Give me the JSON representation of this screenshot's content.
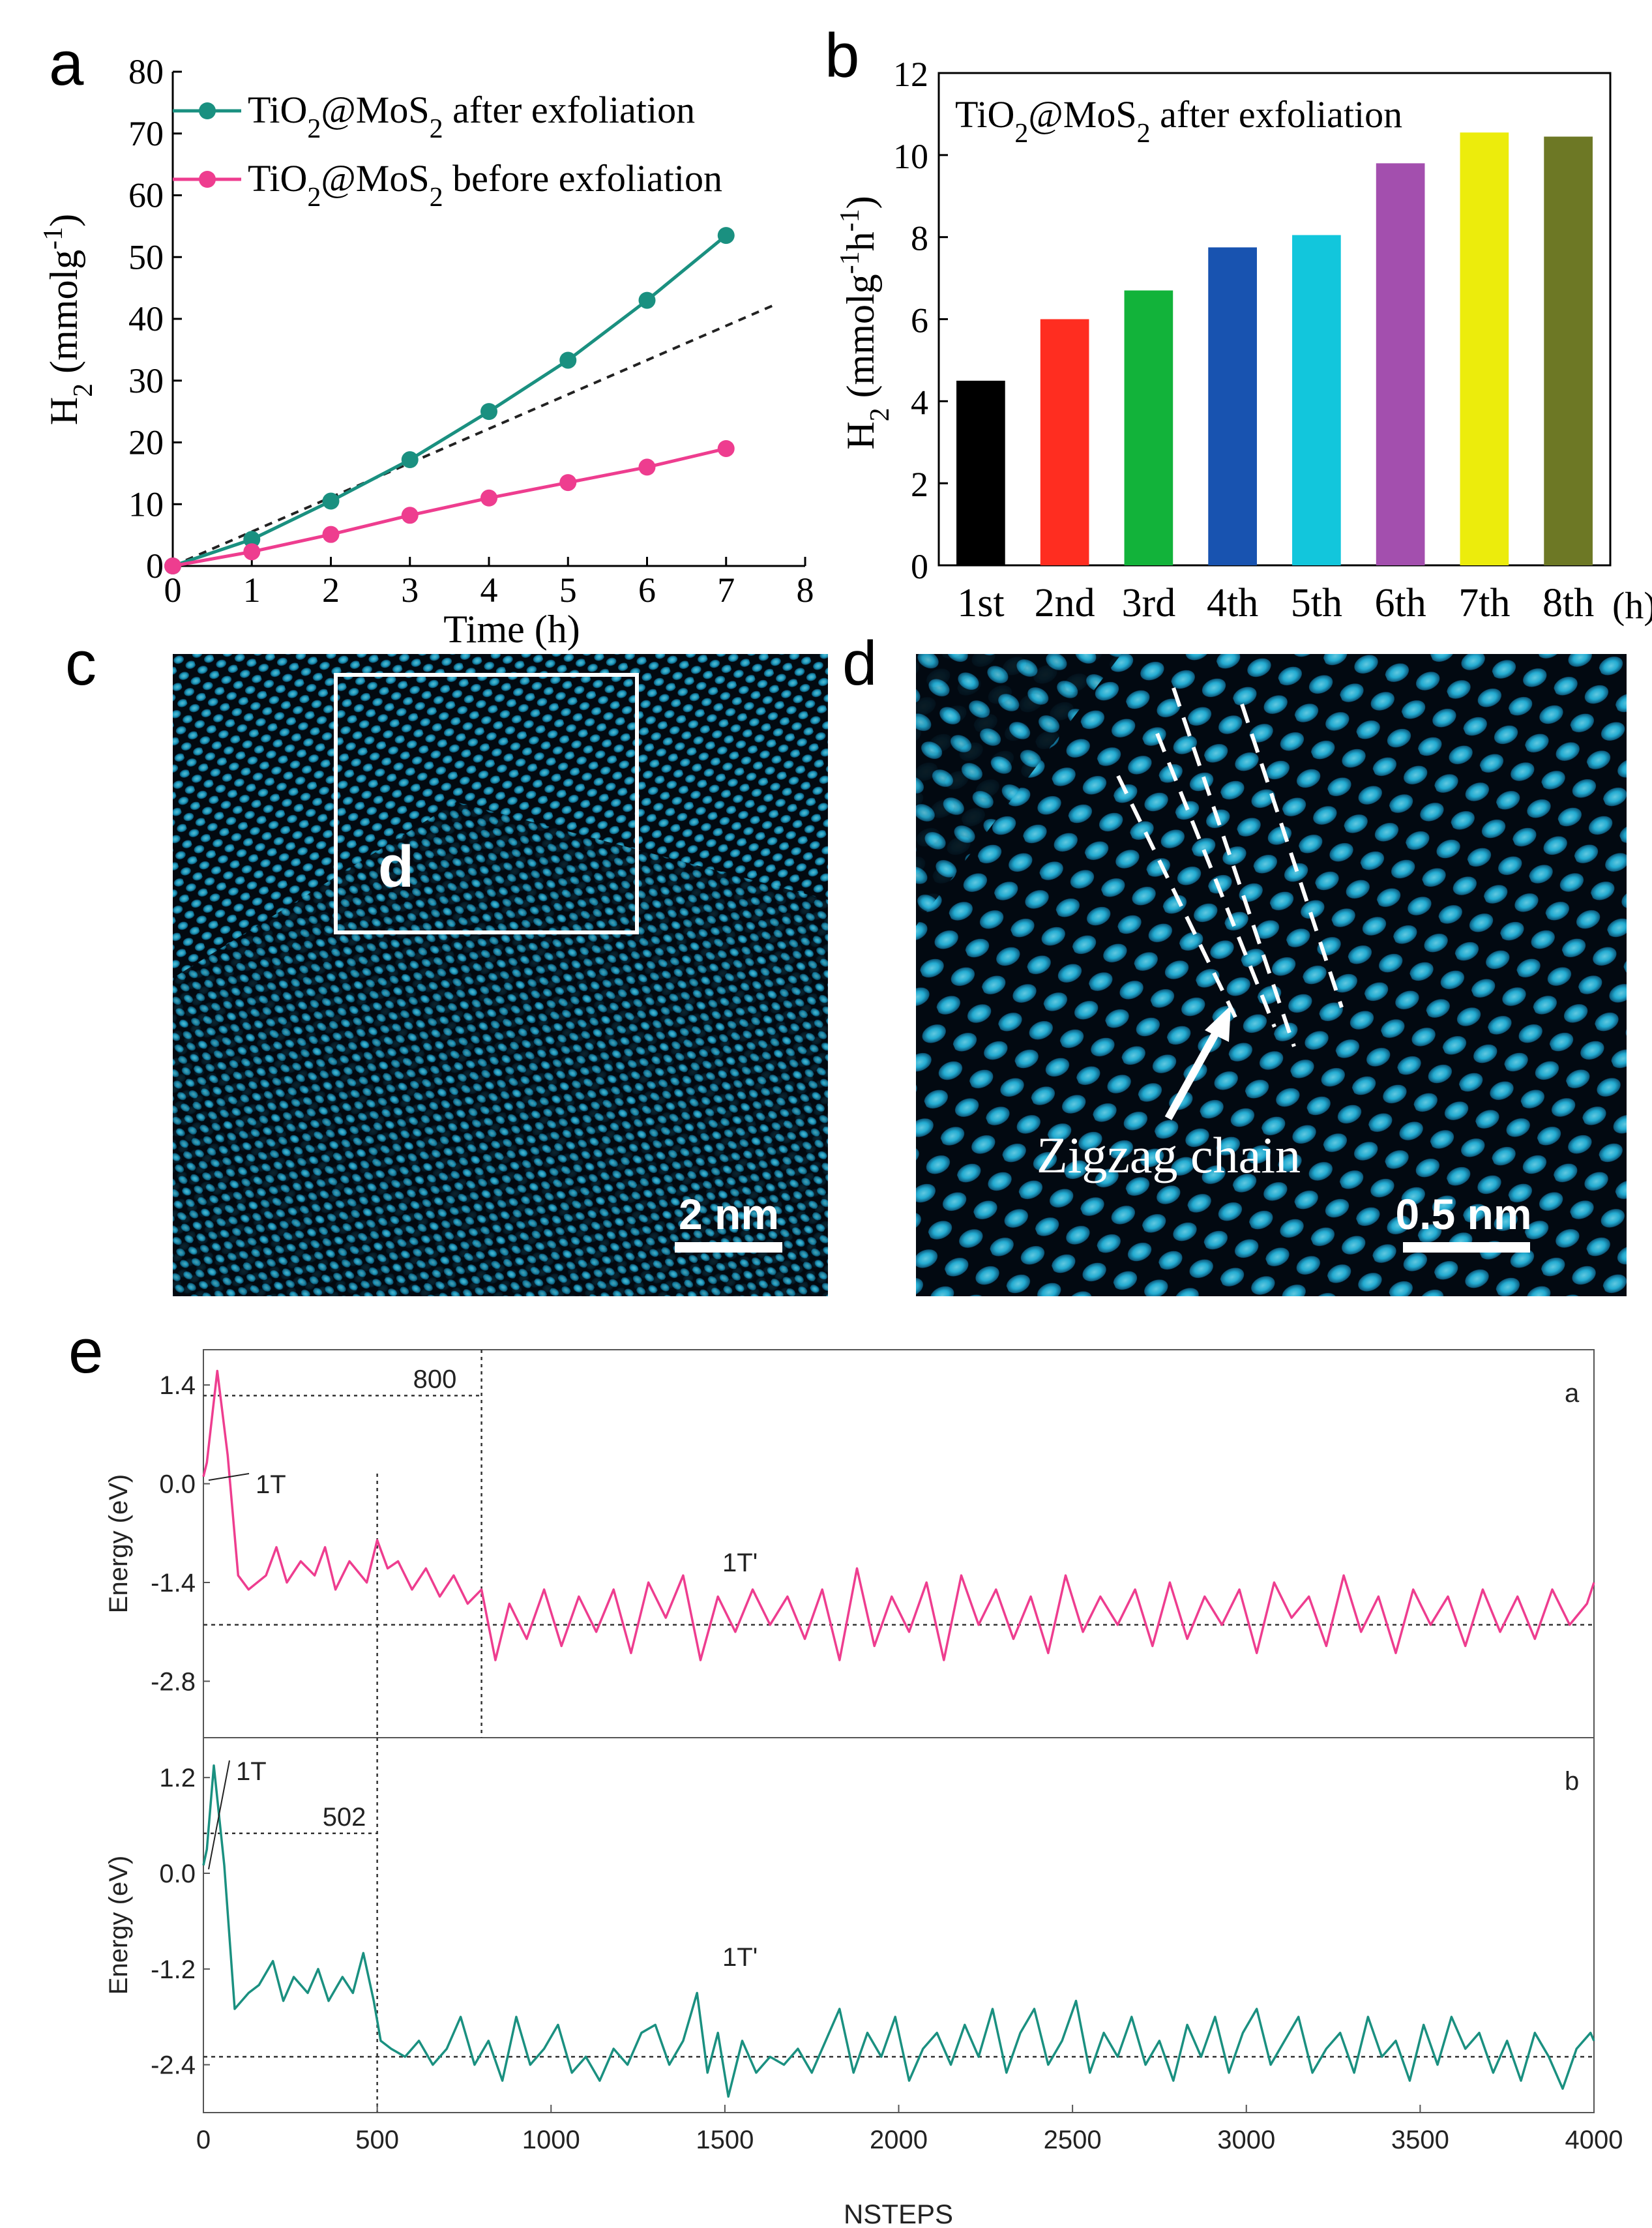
{
  "panels": {
    "a": "a",
    "b": "b",
    "c": "c",
    "d": "d",
    "e": "e"
  },
  "colors": {
    "teal": "#1a9080",
    "pink": "#ee3d8f",
    "hrtem_bg": "#020a12",
    "hrtem_atom": "#29c4ef"
  },
  "chart_data": [
    {
      "id": "a",
      "type": "line",
      "xlabel": "Time (h)",
      "ylabel": "H2 (mmolg-1)",
      "xlim": [
        0,
        8
      ],
      "ylim": [
        0,
        80
      ],
      "xticks": [
        "0",
        "1",
        "2",
        "3",
        "4",
        "5",
        "6",
        "7",
        "8"
      ],
      "yticks": [
        "0",
        "10",
        "20",
        "30",
        "40",
        "50",
        "60",
        "70",
        "80"
      ],
      "legend_position": "top-left",
      "series": [
        {
          "name": "TiO2@MoS2 after exfoliation",
          "color": "#1a9080",
          "x": [
            0,
            1,
            2,
            3,
            4,
            5,
            6,
            7
          ],
          "y": [
            0,
            4.3,
            10.5,
            17.2,
            25.0,
            33.3,
            43.0,
            53.5
          ]
        },
        {
          "name": "TiO2@MoS2 before exfoliation",
          "color": "#ee3d8f",
          "x": [
            0,
            1,
            2,
            3,
            4,
            5,
            6,
            7
          ],
          "y": [
            0,
            2.3,
            5.1,
            8.2,
            11.0,
            13.5,
            16.0,
            19.0
          ]
        }
      ],
      "reference_line": {
        "style": "dashed",
        "x": [
          0,
          7.6
        ],
        "y": [
          0,
          42.2
        ]
      }
    },
    {
      "id": "b",
      "type": "bar",
      "title": "TiO2@MoS2 after exfoliation",
      "ylabel": "H2 (mmolg-1h-1)",
      "xunit": "(h)",
      "ylim": [
        0,
        12
      ],
      "yticks": [
        "0",
        "2",
        "4",
        "6",
        "8",
        "10",
        "12"
      ],
      "categories": [
        "1st",
        "2nd",
        "3rd",
        "4th",
        "5th",
        "6th",
        "7th",
        "8th"
      ],
      "values": [
        4.5,
        6.0,
        6.7,
        7.75,
        8.05,
        9.8,
        10.55,
        10.45
      ],
      "bar_colors": [
        "#000000",
        "#ff2d20",
        "#12b33a",
        "#1853b0",
        "#12c6dc",
        "#a34fae",
        "#ecec0c",
        "#6d7825"
      ]
    },
    {
      "id": "e-a",
      "type": "line",
      "corner_label": "a",
      "xlim": [
        0,
        4000
      ],
      "ylim": [
        -3.6,
        1.9
      ],
      "ylabel": "Energy (eV)",
      "yticks": [
        "1.4",
        "0.0",
        "-1.4",
        "-2.8"
      ],
      "ytick_values": [
        1.4,
        0.0,
        -1.4,
        -2.8
      ],
      "annotations": {
        "step_label": "800",
        "start_phase": "1T",
        "end_phase": "1T'"
      },
      "step_value": 800,
      "peak_energy": 1.25,
      "guide_x": 500,
      "baseline": -2.0,
      "color": "#ee3d8f",
      "series": {
        "x": [
          0,
          10,
          40,
          70,
          100,
          130,
          180,
          210,
          240,
          280,
          320,
          350,
          380,
          420,
          470,
          500,
          530,
          560,
          600,
          640,
          680,
          720,
          760,
          800,
          840,
          880,
          930,
          980,
          1030,
          1080,
          1130,
          1180,
          1230,
          1280,
          1330,
          1380,
          1430,
          1480,
          1530,
          1580,
          1630,
          1680,
          1730,
          1780,
          1830,
          1880,
          1930,
          1980,
          2030,
          2080,
          2130,
          2180,
          2230,
          2280,
          2330,
          2380,
          2430,
          2480,
          2530,
          2580,
          2630,
          2680,
          2730,
          2780,
          2830,
          2880,
          2930,
          2980,
          3030,
          3080,
          3130,
          3180,
          3230,
          3280,
          3330,
          3380,
          3430,
          3480,
          3530,
          3580,
          3630,
          3680,
          3730,
          3780,
          3830,
          3880,
          3930,
          3980,
          4000
        ],
        "y": [
          0.1,
          0.3,
          1.6,
          0.4,
          -1.3,
          -1.5,
          -1.3,
          -0.9,
          -1.4,
          -1.1,
          -1.3,
          -0.9,
          -1.5,
          -1.1,
          -1.4,
          -0.8,
          -1.2,
          -1.1,
          -1.5,
          -1.2,
          -1.6,
          -1.3,
          -1.7,
          -1.5,
          -2.5,
          -1.7,
          -2.2,
          -1.5,
          -2.3,
          -1.6,
          -2.1,
          -1.5,
          -2.4,
          -1.4,
          -1.9,
          -1.3,
          -2.5,
          -1.6,
          -2.1,
          -1.5,
          -2.0,
          -1.6,
          -2.2,
          -1.5,
          -2.5,
          -1.2,
          -2.3,
          -1.6,
          -2.1,
          -1.4,
          -2.5,
          -1.3,
          -2.0,
          -1.5,
          -2.2,
          -1.6,
          -2.4,
          -1.3,
          -2.1,
          -1.6,
          -2.0,
          -1.5,
          -2.3,
          -1.4,
          -2.2,
          -1.6,
          -2.0,
          -1.5,
          -2.4,
          -1.4,
          -1.9,
          -1.6,
          -2.3,
          -1.3,
          -2.1,
          -1.6,
          -2.4,
          -1.5,
          -2.0,
          -1.6,
          -2.3,
          -1.5,
          -2.1,
          -1.6,
          -2.2,
          -1.5,
          -2.0,
          -1.7,
          -1.4
        ]
      }
    },
    {
      "id": "e-b",
      "type": "line",
      "corner_label": "b",
      "xlim": [
        0,
        4000
      ],
      "ylim": [
        -3.0,
        1.7
      ],
      "xlabel": "NSTEPS",
      "ylabel": "Energy (eV)",
      "xticks": [
        "0",
        "500",
        "1000",
        "1500",
        "2000",
        "2500",
        "3000",
        "3500",
        "4000"
      ],
      "yticks": [
        "1.2",
        "0.0",
        "-1.2",
        "-2.4"
      ],
      "ytick_values": [
        1.2,
        0.0,
        -1.2,
        -2.4
      ],
      "annotations": {
        "step_label": "502",
        "start_phase": "1T",
        "end_phase": "1T'"
      },
      "step_value": 502,
      "peak_energy": 0.5,
      "guide_x": 500,
      "baseline": -2.3,
      "color": "#1a9080",
      "series": {
        "x": [
          0,
          10,
          30,
          60,
          90,
          130,
          160,
          200,
          230,
          260,
          300,
          330,
          360,
          400,
          430,
          460,
          490,
          510,
          540,
          580,
          620,
          660,
          700,
          740,
          780,
          820,
          860,
          900,
          940,
          980,
          1020,
          1060,
          1100,
          1140,
          1180,
          1220,
          1260,
          1300,
          1340,
          1380,
          1420,
          1450,
          1480,
          1510,
          1550,
          1590,
          1630,
          1670,
          1710,
          1750,
          1790,
          1830,
          1870,
          1910,
          1950,
          1990,
          2030,
          2070,
          2110,
          2150,
          2190,
          2230,
          2270,
          2310,
          2350,
          2390,
          2430,
          2470,
          2510,
          2550,
          2590,
          2630,
          2670,
          2710,
          2750,
          2790,
          2830,
          2870,
          2910,
          2950,
          2990,
          3030,
          3070,
          3110,
          3150,
          3190,
          3230,
          3270,
          3310,
          3350,
          3390,
          3430,
          3470,
          3510,
          3550,
          3590,
          3630,
          3670,
          3710,
          3750,
          3790,
          3830,
          3870,
          3910,
          3950,
          3990,
          4000
        ],
        "y": [
          0.1,
          0.3,
          1.35,
          0.1,
          -1.7,
          -1.5,
          -1.4,
          -1.1,
          -1.6,
          -1.3,
          -1.5,
          -1.2,
          -1.6,
          -1.3,
          -1.5,
          -1.0,
          -1.6,
          -2.1,
          -2.2,
          -2.3,
          -2.1,
          -2.4,
          -2.2,
          -1.8,
          -2.4,
          -2.1,
          -2.6,
          -1.8,
          -2.4,
          -2.2,
          -1.9,
          -2.5,
          -2.3,
          -2.6,
          -2.2,
          -2.4,
          -2.0,
          -1.9,
          -2.4,
          -2.1,
          -1.5,
          -2.5,
          -2.0,
          -2.8,
          -2.1,
          -2.5,
          -2.3,
          -2.4,
          -2.2,
          -2.5,
          -2.1,
          -1.7,
          -2.5,
          -2.0,
          -2.3,
          -1.8,
          -2.6,
          -2.2,
          -2.0,
          -2.4,
          -1.9,
          -2.3,
          -1.7,
          -2.5,
          -2.0,
          -1.7,
          -2.4,
          -2.1,
          -1.6,
          -2.5,
          -2.0,
          -2.3,
          -1.8,
          -2.4,
          -2.1,
          -2.6,
          -1.9,
          -2.3,
          -1.8,
          -2.5,
          -2.0,
          -1.7,
          -2.4,
          -2.1,
          -1.8,
          -2.5,
          -2.2,
          -2.0,
          -2.5,
          -1.8,
          -2.3,
          -2.1,
          -2.6,
          -1.9,
          -2.4,
          -1.8,
          -2.2,
          -2.0,
          -2.5,
          -2.1,
          -2.6,
          -2.0,
          -2.3,
          -2.7,
          -2.2,
          -2.0,
          -2.1
        ]
      }
    }
  ],
  "images": {
    "c": {
      "box_label": "d",
      "scale_bar": "2 nm"
    },
    "d": {
      "annotation": "Zigzag chain",
      "scale_bar": "0.5 nm"
    }
  }
}
